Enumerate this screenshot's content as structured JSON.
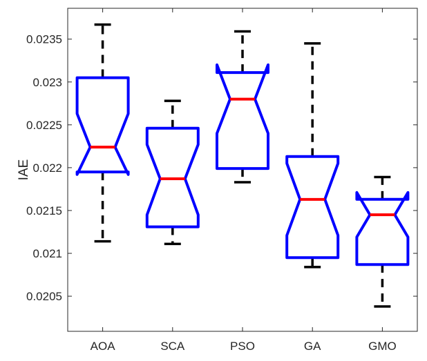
{
  "chart_data": {
    "type": "box",
    "categories": [
      "AOA",
      "SCA",
      "PSO",
      "GA",
      "GMO"
    ],
    "boxes": [
      {
        "category": "AOA",
        "whisker_low": 0.02114,
        "q1": 0.02195,
        "median": 0.02224,
        "q3": 0.02305,
        "whisker_high": 0.02367,
        "notch_low": 0.02192,
        "notch_high": 0.02263
      },
      {
        "category": "SCA",
        "whisker_low": 0.02111,
        "q1": 0.02131,
        "median": 0.02187,
        "q3": 0.02246,
        "whisker_high": 0.02278,
        "notch_low": 0.02145,
        "notch_high": 0.02227
      },
      {
        "category": "PSO",
        "whisker_low": 0.02183,
        "q1": 0.02199,
        "median": 0.0228,
        "q3": 0.02311,
        "whisker_high": 0.02359,
        "notch_low": 0.0224,
        "notch_high": 0.0232
      },
      {
        "category": "GA",
        "whisker_low": 0.02084,
        "q1": 0.02095,
        "median": 0.02163,
        "q3": 0.02213,
        "whisker_high": 0.02345,
        "notch_low": 0.02121,
        "notch_high": 0.02205
      },
      {
        "category": "GMO",
        "whisker_low": 0.02038,
        "q1": 0.02087,
        "median": 0.02145,
        "q3": 0.02163,
        "whisker_high": 0.02189,
        "notch_low": 0.02119,
        "notch_high": 0.02171
      }
    ],
    "ylabel": "IAE",
    "xlabel": "",
    "ylim": [
      0.02009,
      0.02386
    ],
    "yticks": [
      0.0205,
      0.021,
      0.0215,
      0.022,
      0.0225,
      0.023,
      0.0235
    ],
    "ytick_labels": [
      "0.0205",
      "0.021",
      "0.0215",
      "0.022",
      "0.0225",
      "0.023",
      "0.0235"
    ],
    "grid": false,
    "colors": {
      "box": "#0000ff",
      "median": "#ff0000",
      "whisker": "#000000",
      "axis": "#262626"
    }
  }
}
